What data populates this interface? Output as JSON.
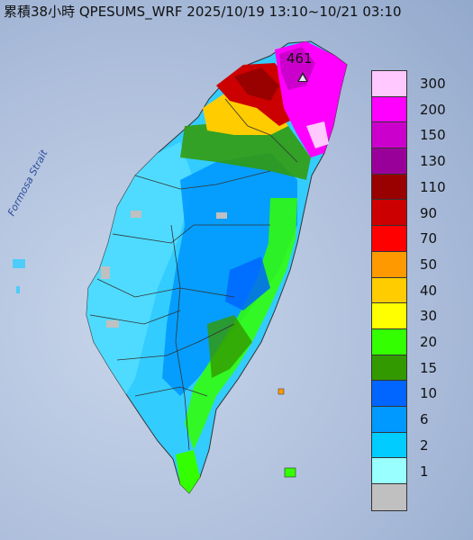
{
  "title": "累積38小時 QPESUMS_WRF 2025/10/19 13:10~10/21 03:10",
  "map_label": "Formosa Strait",
  "max_value_label": "461",
  "legend": {
    "entries": [
      {
        "label": "300",
        "color": "#ffc8ff"
      },
      {
        "label": "200",
        "color": "#ff00ff"
      },
      {
        "label": "150",
        "color": "#cc00cc"
      },
      {
        "label": "130",
        "color": "#990099"
      },
      {
        "label": "110",
        "color": "#990000"
      },
      {
        "label": "90",
        "color": "#cc0000"
      },
      {
        "label": "70",
        "color": "#ff0000"
      },
      {
        "label": "50",
        "color": "#ff9900"
      },
      {
        "label": "40",
        "color": "#ffcc00"
      },
      {
        "label": "30",
        "color": "#ffff00"
      },
      {
        "label": "20",
        "color": "#33ff00"
      },
      {
        "label": "15",
        "color": "#339900"
      },
      {
        "label": "10",
        "color": "#0066ff"
      },
      {
        "label": "6",
        "color": "#0099ff"
      },
      {
        "label": "2",
        "color": "#00ccff"
      },
      {
        "label": "1",
        "color": "#99ffff"
      },
      {
        "label": "",
        "color": "#c0c0c0"
      }
    ]
  }
}
